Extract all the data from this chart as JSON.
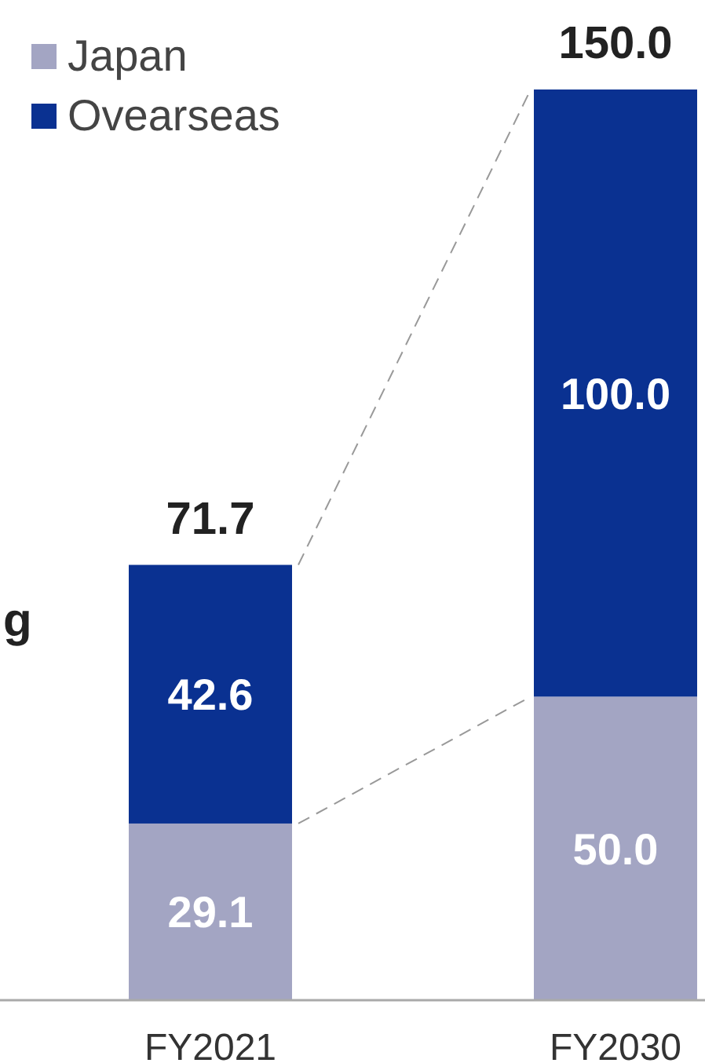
{
  "chart_data": {
    "type": "bar",
    "stacked": true,
    "categories": [
      "FY2021",
      "FY2030"
    ],
    "series": [
      {
        "name": "Japan",
        "color": "#a3a5c3",
        "values": [
          29.1,
          50.0
        ],
        "value_labels": [
          "29.1",
          "50.0"
        ]
      },
      {
        "name": "Ovearseas",
        "color": "#0a3191",
        "values": [
          42.6,
          100.0
        ],
        "value_labels": [
          "42.6",
          "100.0"
        ]
      }
    ],
    "totals": [
      "71.7",
      "150.0"
    ],
    "legend": "top left",
    "annotations": [
      "g"
    ]
  }
}
